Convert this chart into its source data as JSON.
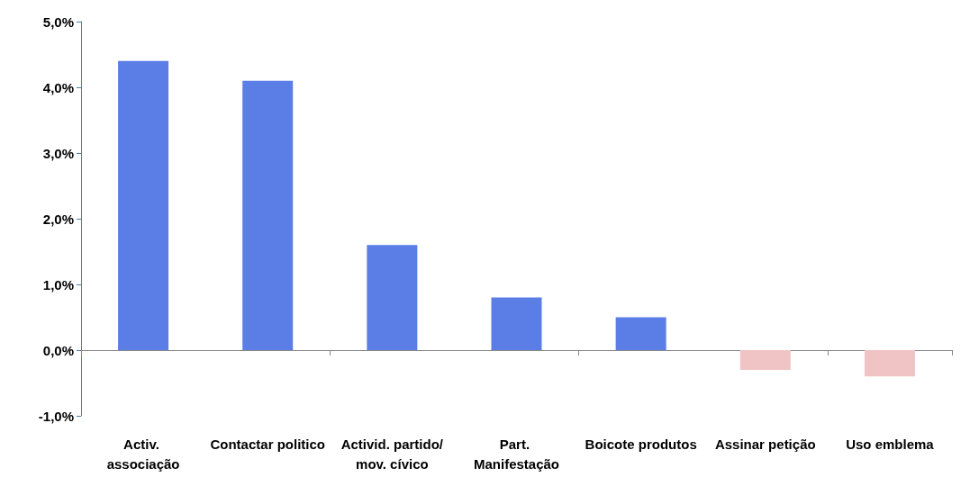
{
  "chart_data": {
    "type": "bar",
    "categories": [
      "Activ. associação",
      "Contactar politico",
      "Activid. partido/mov. cívico",
      "Part. Manifestação",
      "Boicote produtos",
      "Assinar petição",
      "Uso emblema"
    ],
    "values": [
      4.4,
      4.1,
      1.6,
      0.8,
      0.5,
      -0.3,
      -0.4
    ],
    "colors": [
      "#5a7ee6",
      "#5a7ee6",
      "#5a7ee6",
      "#5a7ee6",
      "#5a7ee6",
      "#f0c4c4",
      "#f0c4c4"
    ],
    "ylim": [
      -1,
      5
    ],
    "yticks": [
      {
        "value": -1,
        "label": "-1,0%"
      },
      {
        "value": 0,
        "label": "0,0%"
      },
      {
        "value": 1,
        "label": "1,0%"
      },
      {
        "value": 2,
        "label": "2,0%"
      },
      {
        "value": 3,
        "label": "3,0%"
      },
      {
        "value": 4,
        "label": "4,0%"
      },
      {
        "value": 5,
        "label": "5,0%"
      }
    ],
    "data_labels": false
  }
}
